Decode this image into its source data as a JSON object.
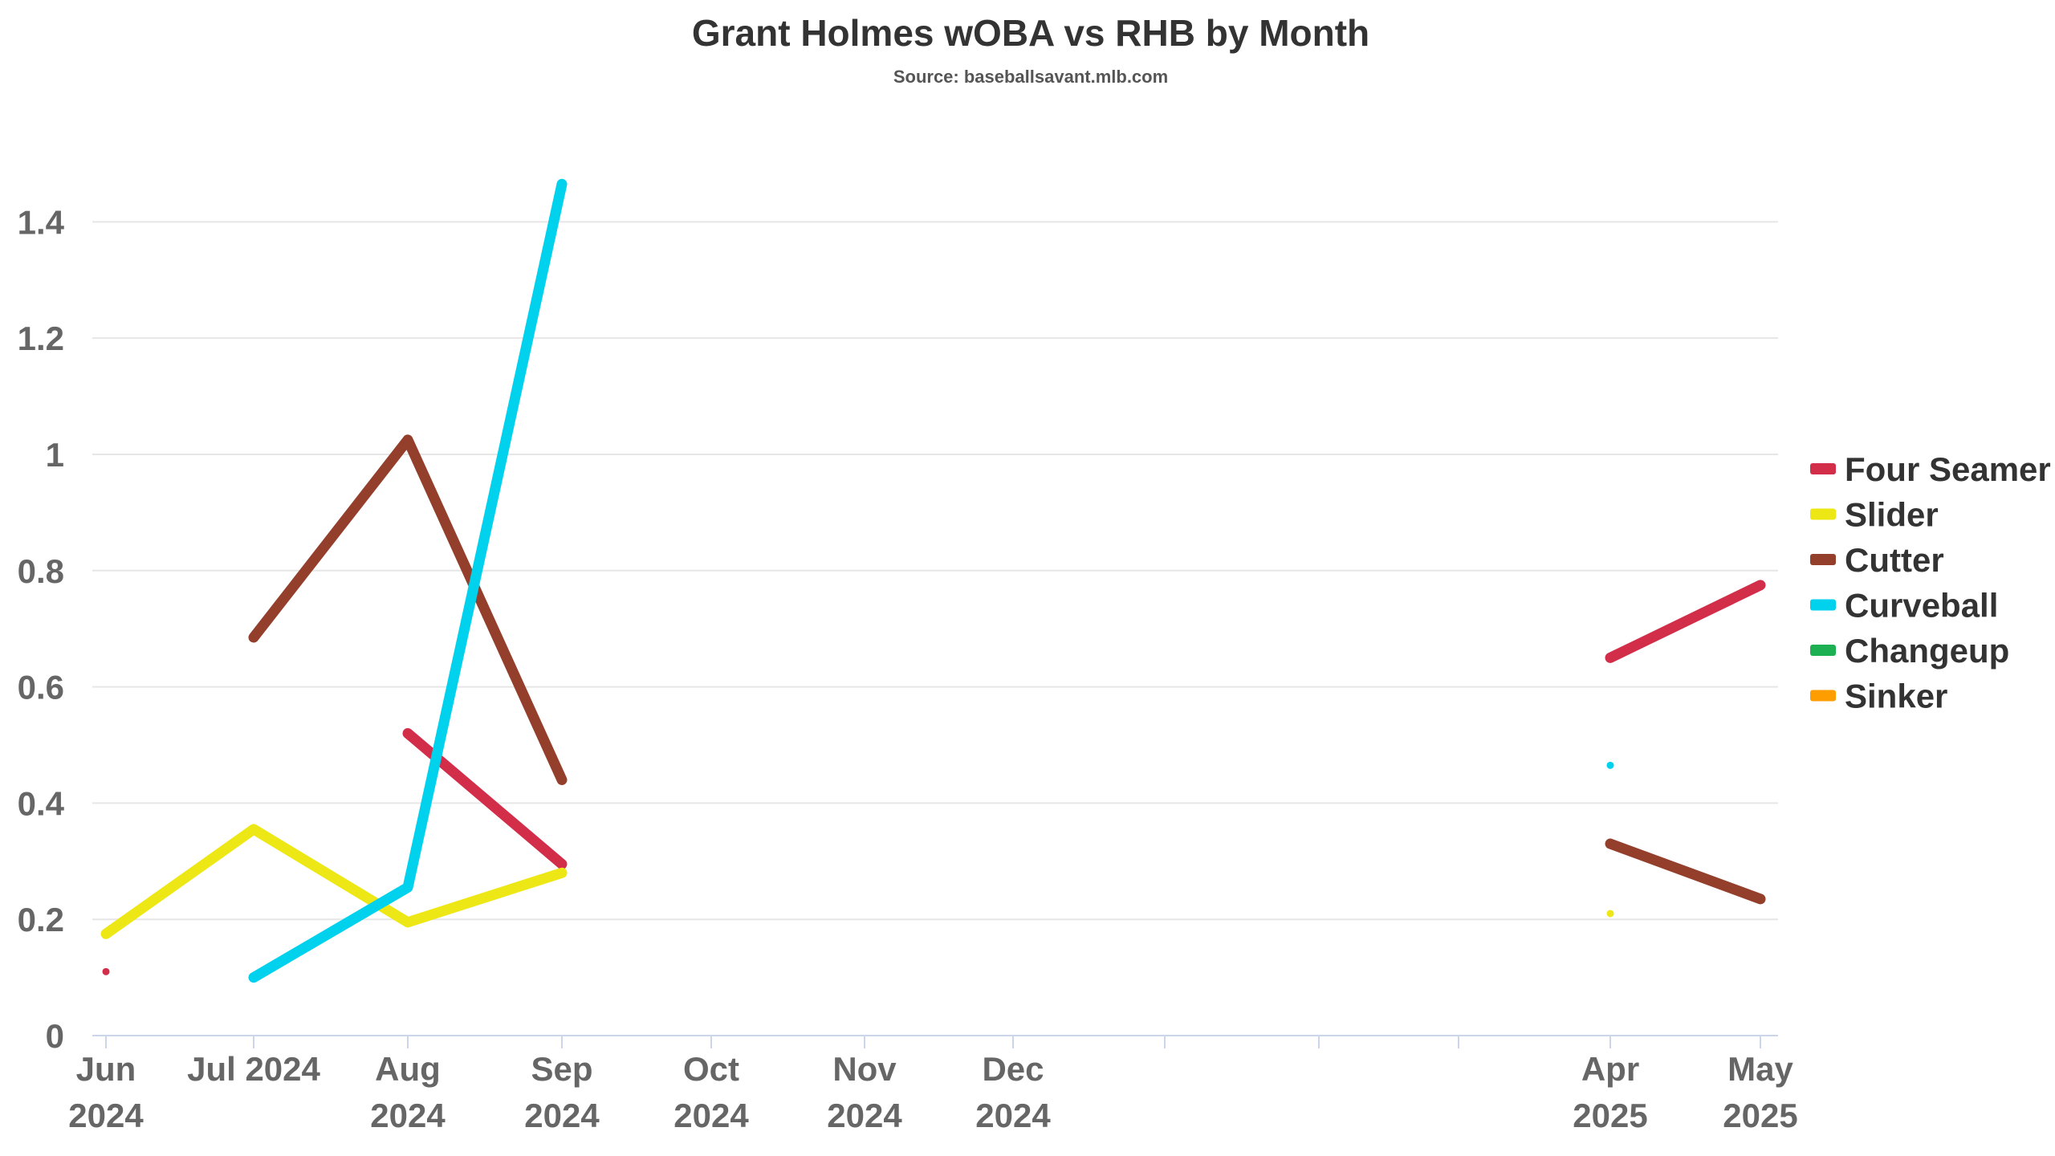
{
  "chart_data": {
    "type": "line",
    "title": "Grant Holmes wOBA vs RHB by Month",
    "subtitle": "Source: baseballsavant.mlb.com",
    "xlabel": "",
    "ylabel": "",
    "ylim": [
      0,
      1.4
    ],
    "y_ticks": [
      0,
      0.2,
      0.4,
      0.6,
      0.8,
      1,
      1.2,
      1.4
    ],
    "y_tick_labels": [
      "0",
      "0.2",
      "0.4",
      "0.6",
      "0.8",
      "1",
      "1.2",
      "1.4"
    ],
    "x": [
      "2024-06",
      "2024-07",
      "2024-08",
      "2024-09",
      "2024-10",
      "2024-11",
      "2024-12",
      "2025-01",
      "2025-02",
      "2025-03",
      "2025-04",
      "2025-05"
    ],
    "x_tick_labels": [
      [
        "Jun",
        "2024"
      ],
      [
        "Jul 2024"
      ],
      [
        "Aug",
        "2024"
      ],
      [
        "Sep",
        "2024"
      ],
      [
        "Oct",
        "2024"
      ],
      [
        "Nov",
        "2024"
      ],
      [
        "Dec",
        "2024"
      ],
      [],
      [],
      [],
      [
        "Apr",
        "2025"
      ],
      [
        "May",
        "2025"
      ]
    ],
    "grid": true,
    "legend_position": "right",
    "series": [
      {
        "name": "Four Seamer",
        "color": "#d22d49",
        "values": [
          0.11,
          null,
          0.52,
          0.295,
          null,
          null,
          null,
          null,
          null,
          null,
          0.65,
          0.775
        ]
      },
      {
        "name": "Slider",
        "color": "#eee716",
        "values": [
          0.175,
          0.355,
          0.195,
          0.28,
          null,
          null,
          null,
          null,
          null,
          null,
          0.21,
          null
        ]
      },
      {
        "name": "Cutter",
        "color": "#933f2c",
        "values": [
          null,
          0.685,
          1.025,
          0.44,
          null,
          null,
          null,
          null,
          null,
          null,
          0.33,
          0.235
        ]
      },
      {
        "name": "Curveball",
        "color": "#00d1ed",
        "values": [
          null,
          0.1,
          0.255,
          1.465,
          null,
          null,
          null,
          null,
          null,
          null,
          0.465,
          null
        ]
      },
      {
        "name": "Changeup",
        "color": "#1db053",
        "values": [
          null,
          null,
          null,
          null,
          null,
          null,
          null,
          null,
          null,
          null,
          null,
          null
        ]
      },
      {
        "name": "Sinker",
        "color": "#fe9d00",
        "values": [
          null,
          null,
          null,
          null,
          null,
          null,
          null,
          null,
          null,
          null,
          null,
          null
        ]
      }
    ]
  }
}
